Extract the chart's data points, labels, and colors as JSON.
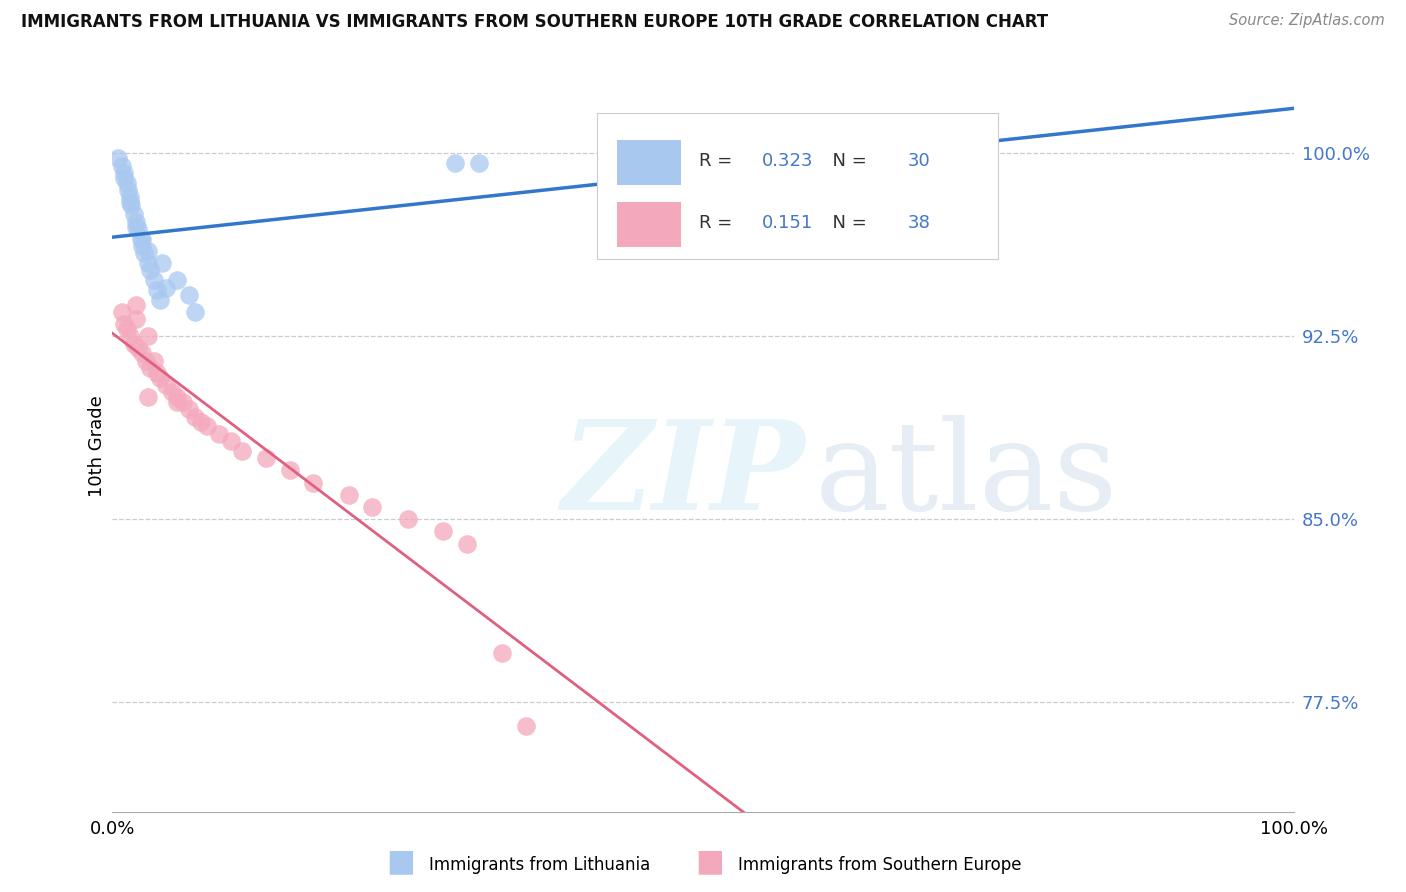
{
  "title": "IMMIGRANTS FROM LITHUANIA VS IMMIGRANTS FROM SOUTHERN EUROPE 10TH GRADE CORRELATION CHART",
  "source": "Source: ZipAtlas.com",
  "ylabel": "10th Grade",
  "yticks": [
    77.5,
    85.0,
    92.5,
    100.0
  ],
  "ytick_labels": [
    "77.5%",
    "85.0%",
    "92.5%",
    "100.0%"
  ],
  "xlim": [
    0.0,
    1.0
  ],
  "ylim": [
    73.0,
    103.0
  ],
  "legend_r_blue": "0.323",
  "legend_n_blue": "30",
  "legend_r_pink": "0.151",
  "legend_n_pink": "38",
  "blue_color": "#a8c8f0",
  "pink_color": "#f4a8bc",
  "blue_line_color": "#3377cc",
  "pink_line_color": "#e06080",
  "legend_label_blue": "Immigrants from Lithuania",
  "legend_label_pink": "Immigrants from Southern Europe",
  "blue_scatter_x": [
    0.005,
    0.008,
    0.01,
    0.012,
    0.013,
    0.015,
    0.016,
    0.018,
    0.02,
    0.022,
    0.024,
    0.025,
    0.027,
    0.03,
    0.032,
    0.035,
    0.038,
    0.04,
    0.042,
    0.045,
    0.01,
    0.015,
    0.02,
    0.025,
    0.03,
    0.055,
    0.065,
    0.07,
    0.29,
    0.31
  ],
  "blue_scatter_y": [
    99.8,
    99.5,
    99.2,
    98.8,
    98.5,
    98.2,
    97.9,
    97.5,
    97.2,
    96.9,
    96.5,
    96.2,
    95.9,
    95.5,
    95.2,
    94.8,
    94.4,
    94.0,
    95.5,
    94.5,
    99.0,
    98.0,
    97.0,
    96.5,
    96.0,
    94.8,
    94.2,
    93.5,
    99.6,
    99.6
  ],
  "pink_scatter_x": [
    0.008,
    0.01,
    0.012,
    0.015,
    0.018,
    0.02,
    0.022,
    0.025,
    0.028,
    0.03,
    0.032,
    0.035,
    0.038,
    0.04,
    0.045,
    0.05,
    0.055,
    0.06,
    0.065,
    0.07,
    0.075,
    0.08,
    0.09,
    0.1,
    0.11,
    0.13,
    0.15,
    0.17,
    0.2,
    0.22,
    0.25,
    0.28,
    0.3,
    0.02,
    0.03,
    0.055,
    0.33,
    0.35
  ],
  "pink_scatter_y": [
    93.5,
    93.0,
    92.8,
    92.5,
    92.2,
    93.8,
    92.0,
    91.8,
    91.5,
    92.5,
    91.2,
    91.5,
    91.0,
    90.8,
    90.5,
    90.2,
    90.0,
    89.8,
    89.5,
    89.2,
    89.0,
    88.8,
    88.5,
    88.2,
    87.8,
    87.5,
    87.0,
    86.5,
    86.0,
    85.5,
    85.0,
    84.5,
    84.0,
    93.2,
    90.0,
    89.8,
    79.5,
    76.5
  ]
}
